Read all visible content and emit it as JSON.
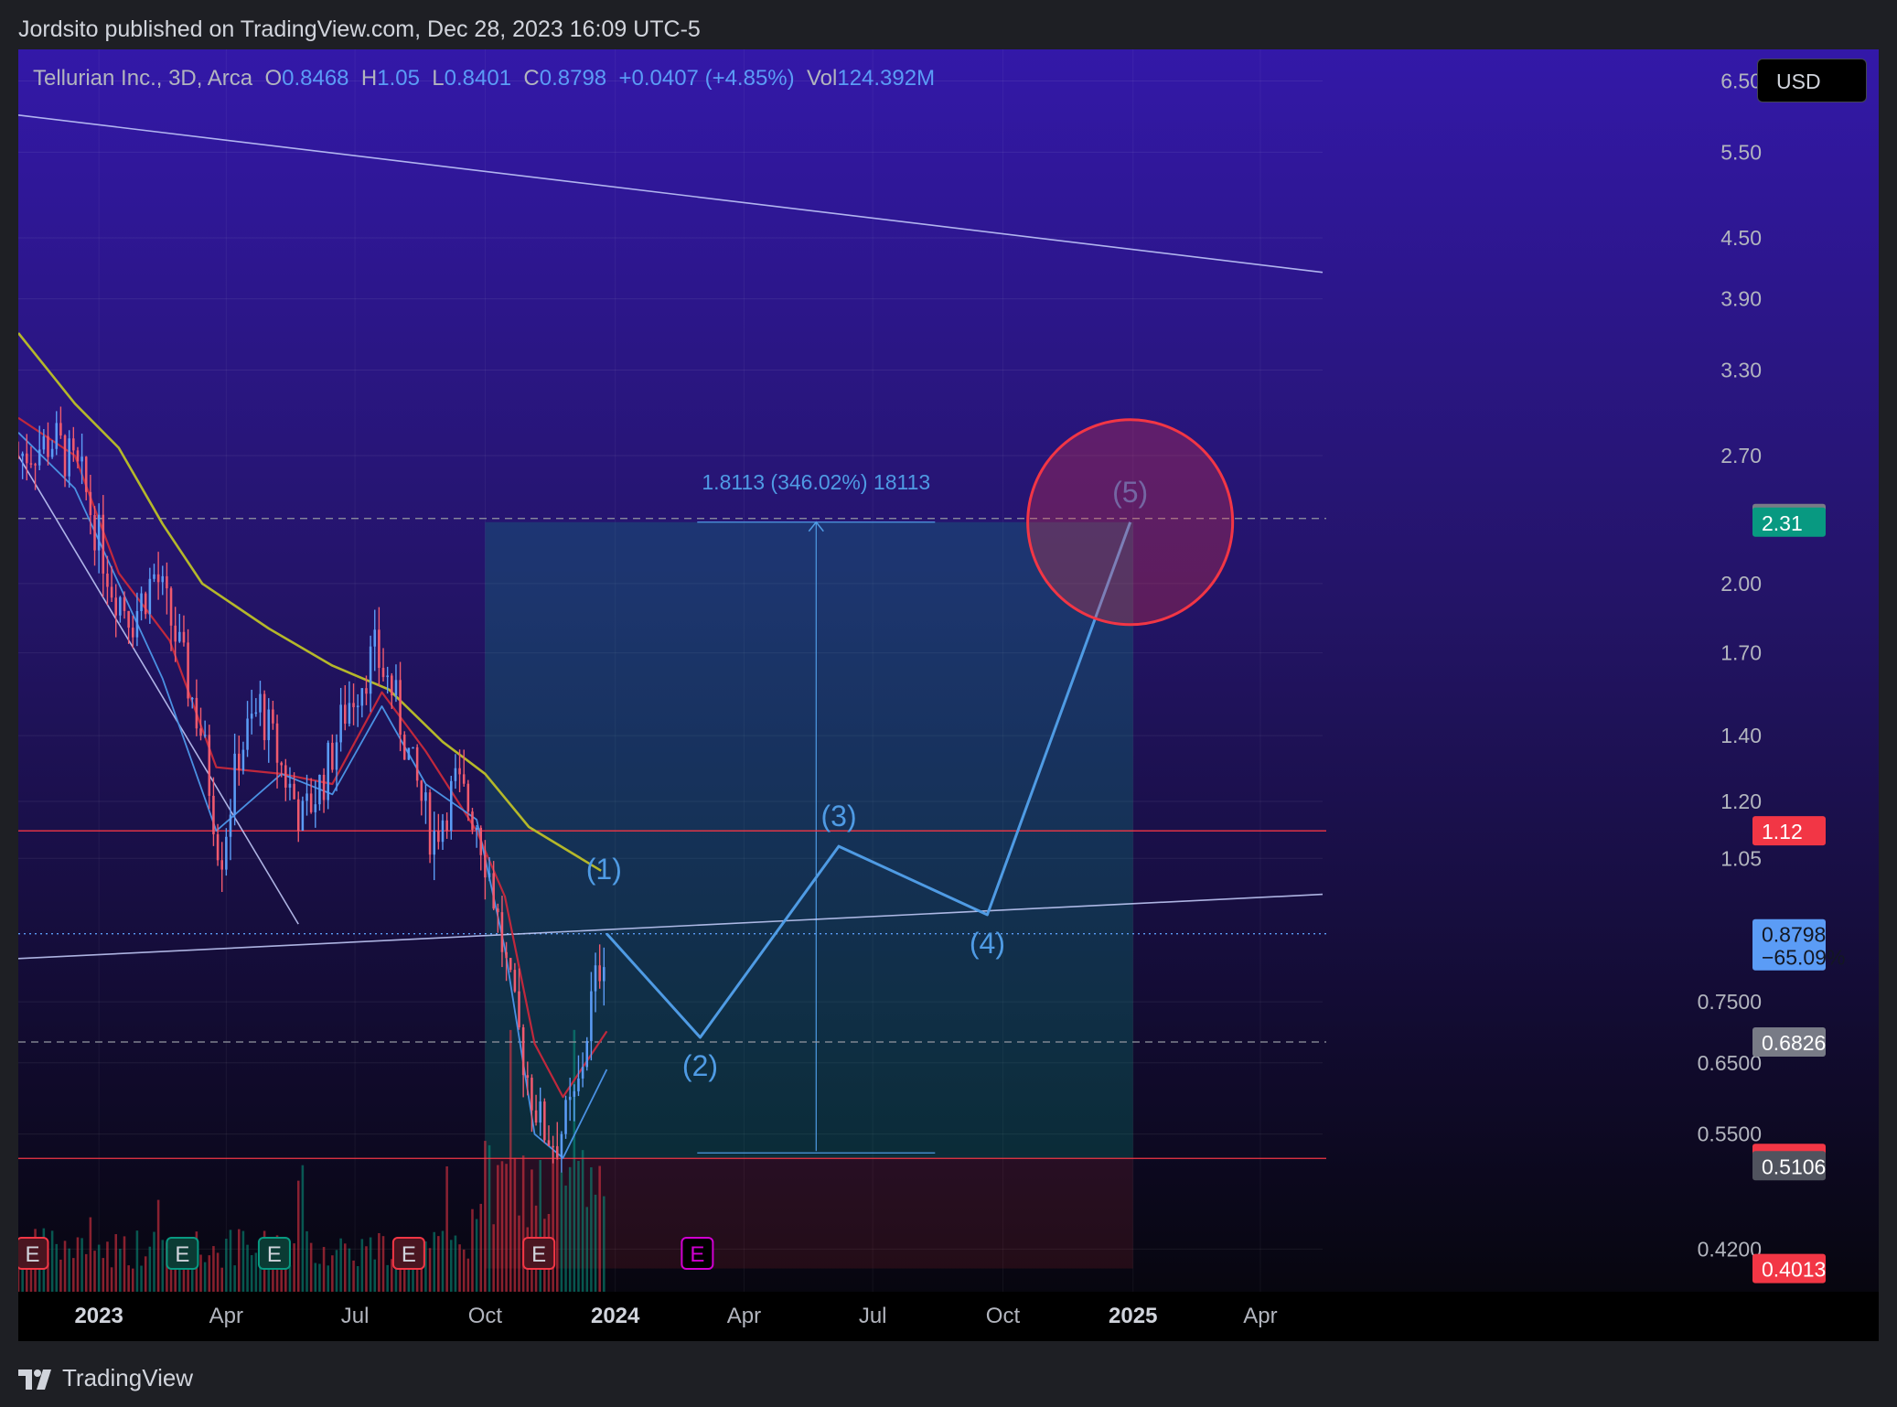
{
  "header": {
    "published": "Jordsito published on TradingView.com, Dec 28, 2023 16:09 UTC-5"
  },
  "legend": {
    "symbol": "Tellurian Inc., 3D, Arca",
    "open_label": "O",
    "open": "0.8468",
    "high_label": "H",
    "high": "1.05",
    "low_label": "L",
    "low": "0.8401",
    "close_label": "C",
    "close": "0.8798",
    "change": "+0.0407 (+4.85%)",
    "vol_label": "Vol",
    "vol": "124.392M"
  },
  "currency_button": "USD",
  "footer": {
    "brand": "TradingView"
  },
  "colors": {
    "up": "#5b9cf6",
    "down": "#f05a6e",
    "ema_fast": "#4a90e2",
    "ema_mid": "#c0283c",
    "sma_slow": "#b5b82a",
    "accent_green": "#089981",
    "accent_red": "#f23645",
    "projection": "#4f9be4"
  },
  "chart_data": {
    "type": "candlestick",
    "scale": "log",
    "ylim": [
      0.38,
      7.0
    ],
    "xlim": [
      "2022-11-05",
      "2025-05-15"
    ],
    "x_ticks": [
      {
        "date": "2023-01-01",
        "label": "2023",
        "bold": true
      },
      {
        "date": "2023-04-01",
        "label": "Apr"
      },
      {
        "date": "2023-07-01",
        "label": "Jul"
      },
      {
        "date": "2023-10-01",
        "label": "Oct"
      },
      {
        "date": "2024-01-01",
        "label": "2024",
        "bold": true
      },
      {
        "date": "2024-04-01",
        "label": "Apr"
      },
      {
        "date": "2024-07-01",
        "label": "Jul"
      },
      {
        "date": "2024-10-01",
        "label": "Oct"
      },
      {
        "date": "2025-01-01",
        "label": "2025",
        "bold": true
      },
      {
        "date": "2025-04-01",
        "label": "Apr"
      }
    ],
    "y_ticks": [
      {
        "value": 6.5,
        "label": "6.50"
      },
      {
        "value": 5.5,
        "label": "5.50"
      },
      {
        "value": 4.5,
        "label": "4.50"
      },
      {
        "value": 3.9,
        "label": "3.90"
      },
      {
        "value": 3.3,
        "label": "3.30"
      },
      {
        "value": 2.7,
        "label": "2.70"
      },
      {
        "value": 2.0,
        "label": "2.00"
      },
      {
        "value": 1.7,
        "label": "1.70"
      },
      {
        "value": 1.4,
        "label": "1.40"
      },
      {
        "value": 1.2,
        "label": "1.20"
      },
      {
        "value": 1.05,
        "label": "1.05"
      },
      {
        "value": 0.75,
        "label": "0.7500"
      },
      {
        "value": 0.65,
        "label": "0.6500"
      },
      {
        "value": 0.55,
        "label": "0.5500"
      },
      {
        "value": 0.42,
        "label": "0.4200"
      }
    ],
    "price_labels": [
      {
        "value": 2.33,
        "label": "2.33",
        "bg": "#787b86",
        "fg": "#ffffff"
      },
      {
        "value": 2.31,
        "label": "2.31",
        "bg": "#089981",
        "fg": "#ffffff"
      },
      {
        "value": 1.12,
        "label": "1.12",
        "bg": "#f23645",
        "fg": "#ffffff"
      },
      {
        "value": 0.8798,
        "label": "0.8798",
        "label2": "−65.09%",
        "bg": "#5b9cf6",
        "fg": "#131722"
      },
      {
        "value": 0.6826,
        "label": "0.6826",
        "bg": "#787b86",
        "fg": "#ffffff"
      },
      {
        "value": 0.5195,
        "label": "0.5195",
        "bg": "#f23645",
        "fg": "#ffffff"
      },
      {
        "value": 0.5106,
        "label": "0.5106",
        "bg": "#50535e",
        "fg": "#ffffff"
      },
      {
        "value": 0.4013,
        "label": "0.4013",
        "bg": "#f23645",
        "fg": "#ffffff"
      }
    ],
    "horizontal_lines": [
      {
        "value": 1.12,
        "color": "#f23645",
        "style": "solid"
      },
      {
        "value": 0.5195,
        "color": "#f23645",
        "style": "solid"
      },
      {
        "value": 2.33,
        "color": "#9598a1",
        "style": "dashed"
      },
      {
        "value": 0.6826,
        "color": "#9598a1",
        "style": "dashed"
      },
      {
        "value": 0.8798,
        "color": "#5b9cf6",
        "style": "dotted"
      }
    ],
    "trend_lines": [
      {
        "from": [
          "2022-11-05",
          6.0
        ],
        "to": [
          "2025-05-15",
          4.15
        ]
      },
      {
        "from": [
          "2022-11-05",
          0.83
        ],
        "to": [
          "2025-05-15",
          0.965
        ]
      },
      {
        "from": [
          "2022-11-05",
          2.7
        ],
        "to": [
          "2023-05-22",
          0.9
        ]
      }
    ],
    "position_box": {
      "start": "2023-10-01",
      "end": "2025-01-01",
      "entry": 0.5195,
      "target": 2.31,
      "stop": 0.4013,
      "measure_date": "2024-05-22",
      "measure_label": "1.8113 (346.02%) 18113"
    },
    "projection": {
      "points": [
        {
          "date": "2023-12-26",
          "value": 0.8798
        },
        {
          "date": "2024-03-01",
          "value": 0.69,
          "label": "(2)",
          "label_pos": "below"
        },
        {
          "date": "2024-06-07",
          "value": 1.08,
          "label": "(3)",
          "label_pos": "above"
        },
        {
          "date": "2024-09-20",
          "value": 0.92,
          "label": "(4)",
          "label_pos": "below"
        },
        {
          "date": "2024-12-30",
          "value": 2.31,
          "label": "(5)",
          "label_pos": "above"
        }
      ],
      "wave1": {
        "date": "2023-12-24",
        "value": 1.0,
        "label": "(1)"
      }
    },
    "target_circle": {
      "date": "2024-12-30",
      "value": 2.31
    },
    "ma_anchors": {
      "ema_fast": [
        [
          "2022-11-05",
          2.85
        ],
        [
          "2022-12-15",
          2.5
        ],
        [
          "2023-01-15",
          2.0
        ],
        [
          "2023-02-15",
          1.6
        ],
        [
          "2023-03-25",
          1.12
        ],
        [
          "2023-05-10",
          1.28
        ],
        [
          "2023-06-15",
          1.22
        ],
        [
          "2023-07-20",
          1.5
        ],
        [
          "2023-08-20",
          1.25
        ],
        [
          "2023-09-25",
          1.15
        ],
        [
          "2023-10-15",
          0.85
        ],
        [
          "2023-11-05",
          0.55
        ],
        [
          "2023-11-25",
          0.52
        ],
        [
          "2023-12-26",
          0.64
        ]
      ],
      "ema_mid": [
        [
          "2022-11-05",
          2.95
        ],
        [
          "2022-12-15",
          2.7
        ],
        [
          "2023-01-15",
          2.05
        ],
        [
          "2023-02-20",
          1.75
        ],
        [
          "2023-03-25",
          1.3
        ],
        [
          "2023-05-10",
          1.28
        ],
        [
          "2023-06-15",
          1.25
        ],
        [
          "2023-07-20",
          1.55
        ],
        [
          "2023-08-20",
          1.35
        ],
        [
          "2023-09-25",
          1.12
        ],
        [
          "2023-10-15",
          0.96
        ],
        [
          "2023-11-05",
          0.68
        ],
        [
          "2023-11-25",
          0.6
        ],
        [
          "2023-12-26",
          0.7
        ]
      ],
      "sma_slow": [
        [
          "2022-11-05",
          3.6
        ],
        [
          "2022-12-15",
          3.05
        ],
        [
          "2023-01-15",
          2.75
        ],
        [
          "2023-02-15",
          2.3
        ],
        [
          "2023-03-15",
          2.0
        ],
        [
          "2023-05-01",
          1.8
        ],
        [
          "2023-06-15",
          1.65
        ],
        [
          "2023-07-25",
          1.56
        ],
        [
          "2023-09-01",
          1.38
        ],
        [
          "2023-10-01",
          1.28
        ],
        [
          "2023-11-01",
          1.13
        ],
        [
          "2023-12-22",
          1.02
        ]
      ]
    },
    "price_anchors": [
      [
        "2022-11-05",
        2.7
      ],
      [
        "2022-12-01",
        2.8
      ],
      [
        "2022-12-20",
        2.55
      ],
      [
        "2023-01-10",
        2.0
      ],
      [
        "2023-01-25",
        1.85
      ],
      [
        "2023-02-10",
        2.05
      ],
      [
        "2023-02-25",
        1.75
      ],
      [
        "2023-03-15",
        1.4
      ],
      [
        "2023-03-28",
        1.05
      ],
      [
        "2023-04-10",
        1.35
      ],
      [
        "2023-04-25",
        1.5
      ],
      [
        "2023-05-10",
        1.3
      ],
      [
        "2023-05-25",
        1.15
      ],
      [
        "2023-06-10",
        1.28
      ],
      [
        "2023-06-25",
        1.5
      ],
      [
        "2023-07-15",
        1.7
      ],
      [
        "2023-07-28",
        1.55
      ],
      [
        "2023-08-10",
        1.3
      ],
      [
        "2023-08-25",
        1.1
      ],
      [
        "2023-09-10",
        1.25
      ],
      [
        "2023-09-25",
        1.15
      ],
      [
        "2023-10-05",
        1.0
      ],
      [
        "2023-10-20",
        0.75
      ],
      [
        "2023-11-01",
        0.62
      ],
      [
        "2023-11-10",
        0.56
      ],
      [
        "2023-11-20",
        0.54
      ],
      [
        "2023-12-05",
        0.6
      ],
      [
        "2023-12-15",
        0.75
      ],
      [
        "2023-12-26",
        0.88
      ]
    ],
    "volume_markers": [
      {
        "date": "2022-11-15",
        "label": "E",
        "kind": "red"
      },
      {
        "date": "2023-03-01",
        "label": "E",
        "kind": "green"
      },
      {
        "date": "2023-05-05",
        "label": "E",
        "kind": "green"
      },
      {
        "date": "2023-08-08",
        "label": "E",
        "kind": "red"
      },
      {
        "date": "2023-11-08",
        "label": "E",
        "kind": "red"
      },
      {
        "date": "2024-02-28",
        "label": "E",
        "kind": "purple"
      }
    ]
  }
}
